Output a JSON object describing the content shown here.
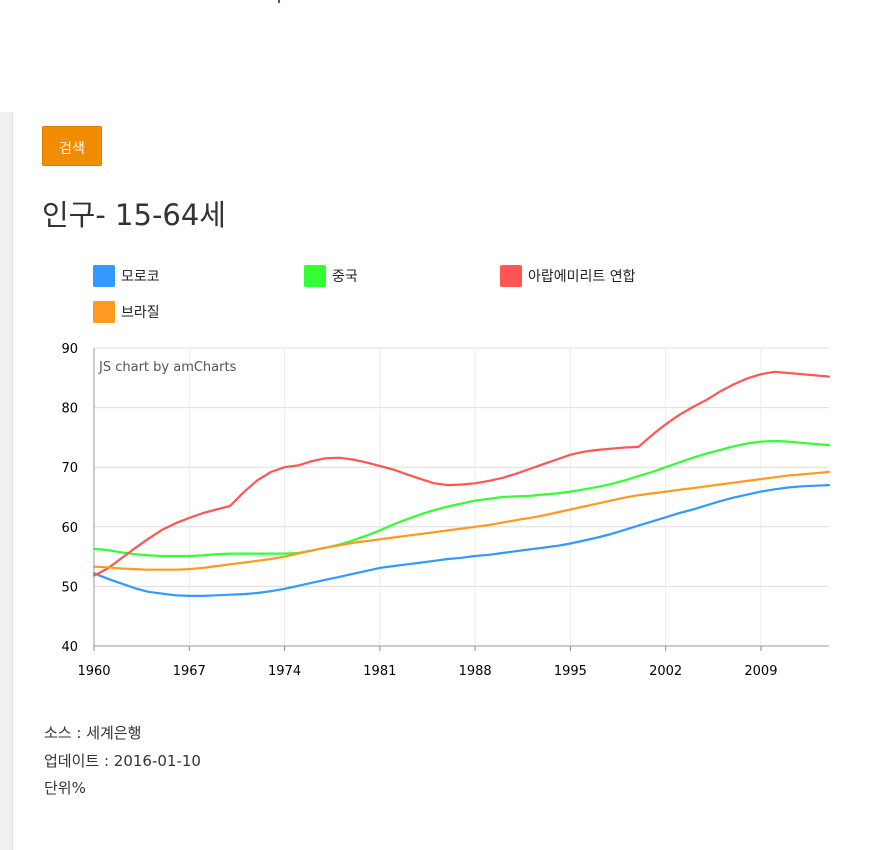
{
  "search_button": {
    "label": "검색"
  },
  "page_title": "인구- 15-64세",
  "chart_data": {
    "type": "line",
    "credit": "JS chart by amCharts",
    "x_ticks": [
      "1960",
      "1967",
      "1974",
      "1981",
      "1988",
      "1995",
      "2002",
      "2009"
    ],
    "x_range": [
      1960,
      2014
    ],
    "ylim": [
      40,
      90
    ],
    "y_ticks": [
      "40",
      "50",
      "60",
      "70",
      "80",
      "90"
    ],
    "grid": true,
    "legend_position": "top",
    "x": [
      1960,
      1961,
      1962,
      1963,
      1964,
      1965,
      1966,
      1967,
      1968,
      1969,
      1970,
      1971,
      1972,
      1973,
      1974,
      1975,
      1976,
      1977,
      1978,
      1979,
      1980,
      1981,
      1982,
      1983,
      1984,
      1985,
      1986,
      1987,
      1988,
      1989,
      1990,
      1991,
      1992,
      1993,
      1994,
      1995,
      1996,
      1997,
      1998,
      1999,
      2000,
      2001,
      2002,
      2003,
      2004,
      2005,
      2006,
      2007,
      2008,
      2009,
      2010,
      2011,
      2012,
      2013,
      2014
    ],
    "series": [
      {
        "name": "모로코",
        "color": "#3399ff",
        "values": [
          52.2,
          51.3,
          50.5,
          49.7,
          49.1,
          48.8,
          48.5,
          48.4,
          48.4,
          48.5,
          48.6,
          48.7,
          48.9,
          49.2,
          49.6,
          50.1,
          50.6,
          51.1,
          51.6,
          52.1,
          52.6,
          53.1,
          53.4,
          53.7,
          54.0,
          54.3,
          54.6,
          54.8,
          55.1,
          55.3,
          55.6,
          55.9,
          56.2,
          56.5,
          56.8,
          57.2,
          57.7,
          58.2,
          58.8,
          59.5,
          60.2,
          60.9,
          61.6,
          62.3,
          62.9,
          63.6,
          64.3,
          64.9,
          65.4,
          65.9,
          66.3,
          66.6,
          66.8,
          66.9,
          67.0
        ]
      },
      {
        "name": "중국",
        "color": "#33ff33",
        "values": [
          56.3,
          56.1,
          55.7,
          55.4,
          55.2,
          55.1,
          55.1,
          55.1,
          55.2,
          55.4,
          55.5,
          55.5,
          55.5,
          55.5,
          55.5,
          55.6,
          56.0,
          56.5,
          57.0,
          57.7,
          58.5,
          59.4,
          60.4,
          61.3,
          62.1,
          62.8,
          63.4,
          63.9,
          64.4,
          64.7,
          65.0,
          65.1,
          65.2,
          65.4,
          65.6,
          65.9,
          66.3,
          66.7,
          67.2,
          67.8,
          68.5,
          69.2,
          70.0,
          70.8,
          71.6,
          72.3,
          72.9,
          73.5,
          74.0,
          74.3,
          74.4,
          74.3,
          74.1,
          73.9,
          73.7
        ]
      },
      {
        "name": "아랍에미리트 연합",
        "color": "#ff5555",
        "values": [
          51.8,
          53.0,
          54.7,
          56.4,
          58.0,
          59.5,
          60.6,
          61.5,
          62.3,
          62.9,
          63.5,
          65.8,
          67.8,
          69.2,
          70.0,
          70.3,
          71.0,
          71.5,
          71.6,
          71.3,
          70.8,
          70.2,
          69.6,
          68.8,
          68.0,
          67.3,
          67.0,
          67.1,
          67.3,
          67.7,
          68.2,
          68.9,
          69.7,
          70.5,
          71.3,
          72.1,
          72.6,
          72.9,
          73.1,
          73.3,
          73.4,
          75.4,
          77.2,
          78.8,
          80.1,
          81.3,
          82.7,
          83.9,
          84.9,
          85.6,
          86.0,
          85.8,
          85.6,
          85.4,
          85.2
        ]
      },
      {
        "name": "브라질",
        "color": "#ff9922",
        "values": [
          53.3,
          53.2,
          53.0,
          52.9,
          52.8,
          52.8,
          52.8,
          52.9,
          53.1,
          53.4,
          53.7,
          54.0,
          54.3,
          54.6,
          55.0,
          55.5,
          56.0,
          56.5,
          56.9,
          57.3,
          57.6,
          57.9,
          58.2,
          58.5,
          58.8,
          59.1,
          59.4,
          59.7,
          60.0,
          60.3,
          60.7,
          61.1,
          61.5,
          61.9,
          62.4,
          62.9,
          63.4,
          63.9,
          64.4,
          64.9,
          65.3,
          65.6,
          65.9,
          66.2,
          66.5,
          66.8,
          67.1,
          67.4,
          67.7,
          68.0,
          68.3,
          68.6,
          68.8,
          69.0,
          69.2
        ]
      }
    ]
  },
  "footer": {
    "source": "소스 : 세계은행",
    "updated": "업데이트 : 2016-01-10",
    "unit": "단위%"
  }
}
